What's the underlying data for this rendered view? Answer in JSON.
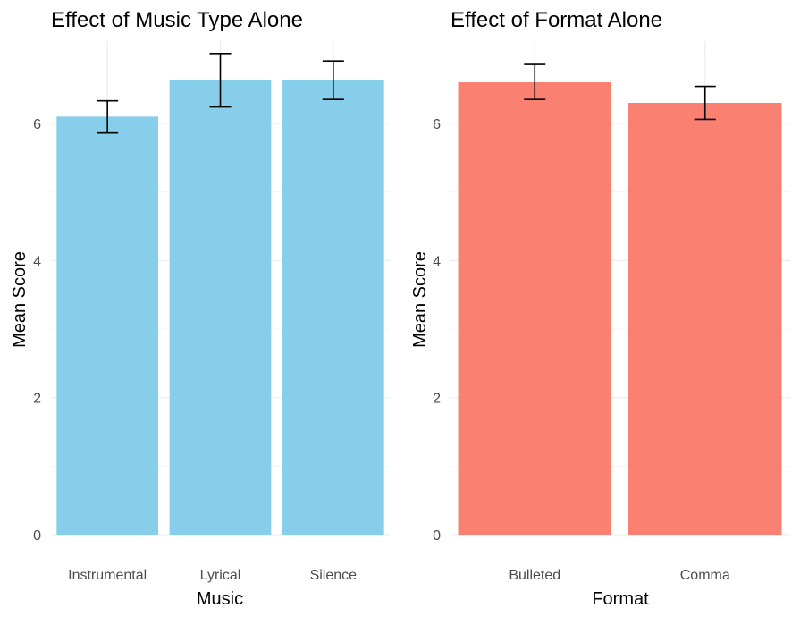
{
  "chart_data": [
    {
      "type": "bar",
      "title": "Effect of Music Type Alone",
      "xlabel": "Music",
      "ylabel": "Mean Score",
      "categories": [
        "Instrumental",
        "Lyrical",
        "Silence"
      ],
      "values": [
        6.1,
        6.63,
        6.63
      ],
      "error_low": [
        5.86,
        6.24,
        6.35
      ],
      "error_high": [
        6.33,
        7.02,
        6.91
      ],
      "ylim": [
        0,
        7.2
      ],
      "yticks": [
        0,
        2,
        4,
        6
      ],
      "ytick_labels": [
        "0",
        "2",
        "4",
        "6"
      ],
      "bar_color": "#87CEEB",
      "grid": true
    },
    {
      "type": "bar",
      "title": "Effect of Format Alone",
      "xlabel": "Format",
      "ylabel": "Mean Score",
      "categories": [
        "Bulleted",
        "Comma"
      ],
      "values": [
        6.6,
        6.3
      ],
      "error_low": [
        6.35,
        6.06
      ],
      "error_high": [
        6.86,
        6.54
      ],
      "ylim": [
        0,
        7.2
      ],
      "yticks": [
        0,
        2,
        4,
        6
      ],
      "ytick_labels": [
        "0",
        "2",
        "4",
        "6"
      ],
      "bar_color": "#FA8072",
      "grid": true
    }
  ]
}
